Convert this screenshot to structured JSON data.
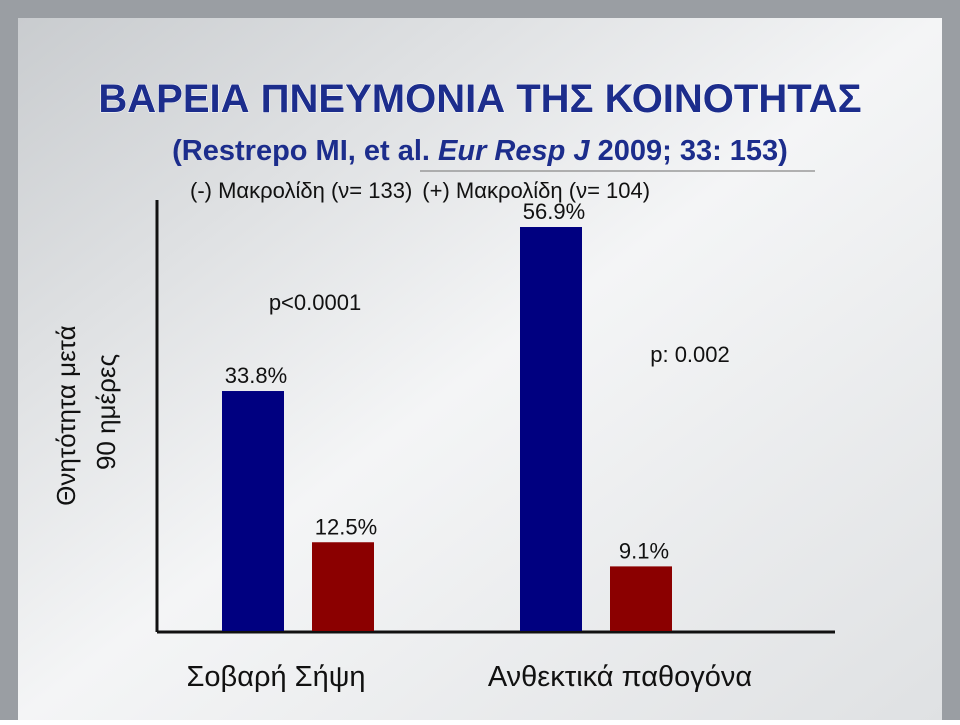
{
  "chart_data": {
    "type": "bar",
    "title": "ΒΑΡΕΙΑ ΠΝΕΥΜΟΝΙΑ ΤΗΣ ΚΟΙΝΟΤΗΤΑΣ",
    "subtitle_parts": [
      "(Restrepo MI, et al. ",
      "Eur Resp J",
      " 2009; 33: 153)"
    ],
    "y_label_lines": [
      "Θνητότητα μετά",
      "90 ημέρες"
    ],
    "categories": [
      "Σοβαρή Σήψη",
      "Ανθεκτικά παθογόνα"
    ],
    "series": [
      {
        "name": "(-) Μακρολίδη (ν= 133)",
        "color": "#000080",
        "values": [
          33.8,
          56.9
        ],
        "value_labels": [
          "33.8%",
          "56.9%"
        ]
      },
      {
        "name": "(+) Μακρολίδη (ν= 104)",
        "color": "#8b0000",
        "values": [
          12.5,
          9.1
        ],
        "value_labels": [
          "12.5%",
          "9.1%"
        ]
      }
    ],
    "annotations": [
      "p<0.0001",
      "p: 0.002"
    ],
    "ylim": [
      0,
      60
    ]
  }
}
